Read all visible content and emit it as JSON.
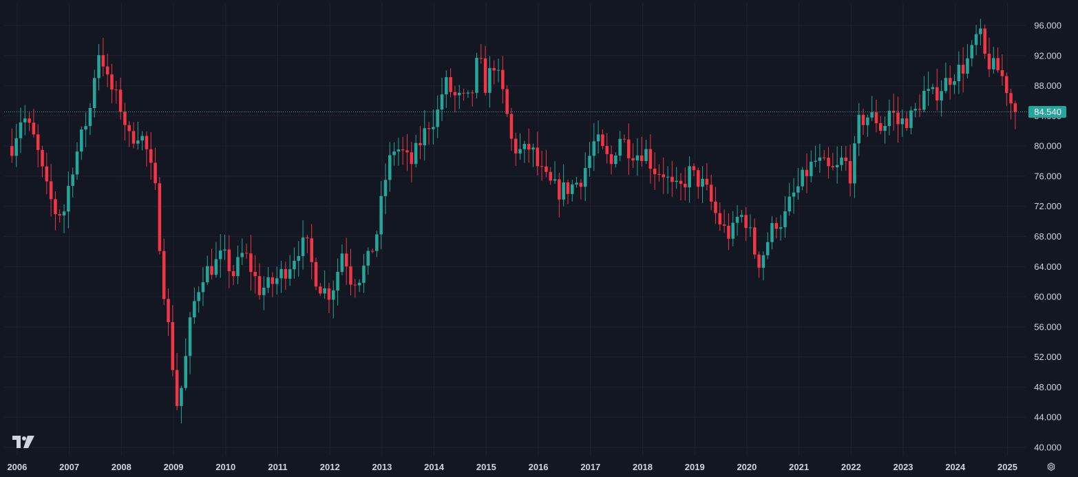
{
  "chart_data": {
    "type": "candlestick",
    "interval": "monthly",
    "colors": {
      "background": "#131722",
      "grid": "#1f2330",
      "up": "#26a69a",
      "down": "#f23645",
      "price_line": "#26a69a",
      "text": "#d1d4dc"
    },
    "x_axis": {
      "labels": [
        "2006",
        "2007",
        "2008",
        "2009",
        "2010",
        "2011",
        "2012",
        "2013",
        "2014",
        "2015",
        "2016",
        "2017",
        "2018",
        "2019",
        "2020",
        "2021",
        "2022",
        "2023",
        "2024",
        "2025"
      ]
    },
    "y_axis": {
      "range": [
        39,
        99
      ],
      "tick_values": [
        40,
        44,
        48,
        52,
        56,
        60,
        64,
        68,
        72,
        76,
        80,
        84,
        88,
        92,
        96
      ],
      "tick_labels": [
        "40.000",
        "44.000",
        "48.000",
        "52.000",
        "56.000",
        "60.000",
        "64.000",
        "68.000",
        "72.000",
        "76.000",
        "80.000",
        "84.000",
        "88.000",
        "92.000",
        "96.000"
      ]
    },
    "last_price": 84.54,
    "last_price_label": "84.540",
    "grid": true,
    "path_anchors": [
      [
        2005.9,
        80.0
      ],
      [
        2006.1,
        84.3
      ],
      [
        2006.35,
        80.5
      ],
      [
        2006.55,
        74.5
      ],
      [
        2006.75,
        71.0
      ],
      [
        2006.9,
        71.5
      ],
      [
        2007.05,
        77.0
      ],
      [
        2007.25,
        81.5
      ],
      [
        2007.4,
        85.0
      ],
      [
        2007.5,
        90.5
      ],
      [
        2007.6,
        93.5
      ],
      [
        2007.7,
        89.0
      ],
      [
        2007.85,
        87.0
      ],
      [
        2008.0,
        85.0
      ],
      [
        2008.15,
        81.0
      ],
      [
        2008.35,
        82.0
      ],
      [
        2008.5,
        79.0
      ],
      [
        2008.65,
        74.0
      ],
      [
        2008.8,
        62.0
      ],
      [
        2008.95,
        53.0
      ],
      [
        2009.08,
        45.0
      ],
      [
        2009.2,
        50.0
      ],
      [
        2009.35,
        58.0
      ],
      [
        2009.55,
        63.0
      ],
      [
        2009.75,
        64.0
      ],
      [
        2009.95,
        65.5
      ],
      [
        2010.15,
        63.0
      ],
      [
        2010.35,
        66.0
      ],
      [
        2010.5,
        63.5
      ],
      [
        2010.65,
        61.0
      ],
      [
        2010.85,
        61.5
      ],
      [
        2011.0,
        62.5
      ],
      [
        2011.2,
        64.0
      ],
      [
        2011.4,
        66.5
      ],
      [
        2011.55,
        67.0
      ],
      [
        2011.7,
        63.0
      ],
      [
        2011.85,
        61.0
      ],
      [
        2012.0,
        60.5
      ],
      [
        2012.1,
        62.0
      ],
      [
        2012.25,
        66.5
      ],
      [
        2012.4,
        62.5
      ],
      [
        2012.55,
        62.5
      ],
      [
        2012.75,
        65.0
      ],
      [
        2012.9,
        68.5
      ],
      [
        2013.0,
        73.0
      ],
      [
        2013.1,
        77.0
      ],
      [
        2013.25,
        80.0
      ],
      [
        2013.4,
        79.0
      ],
      [
        2013.55,
        77.5
      ],
      [
        2013.7,
        80.0
      ],
      [
        2013.9,
        83.0
      ],
      [
        2014.05,
        84.0
      ],
      [
        2014.2,
        88.5
      ],
      [
        2014.4,
        86.5
      ],
      [
        2014.55,
        86.0
      ],
      [
        2014.7,
        86.0
      ],
      [
        2014.85,
        92.0
      ],
      [
        2014.98,
        88.0
      ],
      [
        2015.15,
        91.0
      ],
      [
        2015.35,
        86.0
      ],
      [
        2015.5,
        80.0
      ],
      [
        2015.7,
        79.0
      ],
      [
        2015.85,
        80.0
      ],
      [
        2016.0,
        77.0
      ],
      [
        2016.2,
        75.0
      ],
      [
        2016.4,
        74.0
      ],
      [
        2016.6,
        74.5
      ],
      [
        2016.8,
        75.5
      ],
      [
        2016.95,
        78.0
      ],
      [
        2017.1,
        81.0
      ],
      [
        2017.25,
        79.0
      ],
      [
        2017.4,
        77.5
      ],
      [
        2017.55,
        81.5
      ],
      [
        2017.75,
        79.5
      ],
      [
        2017.9,
        79.0
      ],
      [
        2018.05,
        79.5
      ],
      [
        2018.2,
        77.0
      ],
      [
        2018.4,
        76.5
      ],
      [
        2018.6,
        74.0
      ],
      [
        2018.75,
        74.5
      ],
      [
        2018.9,
        76.5
      ],
      [
        2019.05,
        75.5
      ],
      [
        2019.2,
        74.5
      ],
      [
        2019.4,
        71.0
      ],
      [
        2019.55,
        69.0
      ],
      [
        2019.7,
        68.0
      ],
      [
        2019.85,
        71.0
      ],
      [
        2020.0,
        70.0
      ],
      [
        2020.15,
        66.0
      ],
      [
        2020.25,
        64.5
      ],
      [
        2020.4,
        67.5
      ],
      [
        2020.55,
        70.0
      ],
      [
        2020.7,
        70.0
      ],
      [
        2020.85,
        73.0
      ],
      [
        2020.95,
        74.0
      ],
      [
        2021.1,
        76.0
      ],
      [
        2021.3,
        78.0
      ],
      [
        2021.45,
        77.5
      ],
      [
        2021.6,
        76.5
      ],
      [
        2021.75,
        77.0
      ],
      [
        2021.85,
        78.5
      ],
      [
        2022.0,
        76.0
      ],
      [
        2022.15,
        83.0
      ],
      [
        2022.3,
        84.0
      ],
      [
        2022.5,
        83.5
      ],
      [
        2022.6,
        82.0
      ],
      [
        2022.75,
        85.0
      ],
      [
        2022.9,
        83.0
      ],
      [
        2023.05,
        83.5
      ],
      [
        2023.2,
        84.0
      ],
      [
        2023.4,
        87.0
      ],
      [
        2023.55,
        86.5
      ],
      [
        2023.75,
        88.0
      ],
      [
        2023.95,
        89.5
      ],
      [
        2024.15,
        90.5
      ],
      [
        2024.3,
        92.0
      ],
      [
        2024.45,
        95.5
      ],
      [
        2024.55,
        92.0
      ],
      [
        2024.7,
        90.5
      ],
      [
        2024.85,
        90.0
      ],
      [
        2025.0,
        87.5
      ],
      [
        2025.1,
        85.0
      ],
      [
        2025.15,
        84.54
      ]
    ]
  },
  "icons": {
    "logo": "tradingview-logo",
    "settings": "settings-gear-icon"
  }
}
